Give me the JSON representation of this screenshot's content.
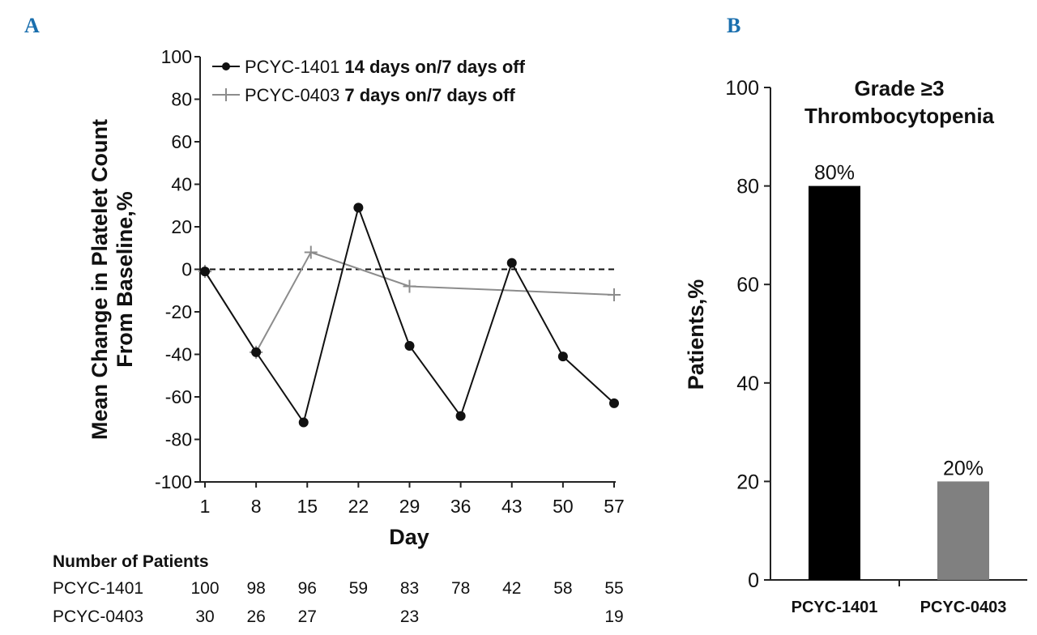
{
  "panel_labels": [
    "A",
    "B"
  ],
  "chart_data": [
    {
      "type": "line",
      "xlabel": "Day",
      "ylabel_lines": [
        "Mean Change in Platelet Count",
        "From Baseline,%"
      ],
      "categories": [
        "1",
        "8",
        "15",
        "22",
        "29",
        "36",
        "43",
        "50",
        "57"
      ],
      "x_values": [
        1,
        8,
        15,
        22,
        29,
        36,
        43,
        50,
        57
      ],
      "ylim": [
        -100,
        100
      ],
      "yticks": [
        100,
        80,
        60,
        40,
        20,
        0,
        -20,
        -40,
        -60,
        -80,
        -100
      ],
      "reference_line": 0,
      "series": [
        {
          "name": "PCYC-1401",
          "legend_suffix": "14 days on/7 days off",
          "color": "#111111",
          "marker": "circle",
          "x": [
            1,
            8,
            14.5,
            22,
            29,
            36,
            43,
            50,
            57
          ],
          "y": [
            -1,
            -39,
            -72,
            29,
            -36,
            -69,
            3,
            -41,
            -63
          ]
        },
        {
          "name": "PCYC-0403",
          "legend_suffix": "7 days on/7 days off",
          "color": "#8c8c8c",
          "marker": "plus",
          "x": [
            1,
            8,
            15.5,
            29,
            57
          ],
          "y": [
            -1,
            -39,
            8,
            -8,
            -12
          ]
        }
      ],
      "patients_table": {
        "heading": "Number of Patients",
        "rows": [
          {
            "label": "PCYC-1401",
            "values": [
              "100",
              "98",
              "96",
              "59",
              "83",
              "78",
              "42",
              "58",
              "55"
            ]
          },
          {
            "label": "PCYC-0403",
            "values": [
              "30",
              "26",
              "27",
              "",
              "23",
              "",
              "",
              "",
              "19"
            ]
          }
        ]
      }
    },
    {
      "type": "bar",
      "title_lines": [
        "Grade ≥3",
        "Thrombocytopenia"
      ],
      "ylabel": "Patients,%",
      "ylim": [
        0,
        100
      ],
      "yticks": [
        0,
        20,
        40,
        60,
        80,
        100
      ],
      "categories": [
        "PCYC-1401",
        "PCYC-0403"
      ],
      "values": [
        80,
        20
      ],
      "value_labels": [
        "80%",
        "20%"
      ],
      "colors": [
        "#000000",
        "#808080"
      ]
    }
  ]
}
